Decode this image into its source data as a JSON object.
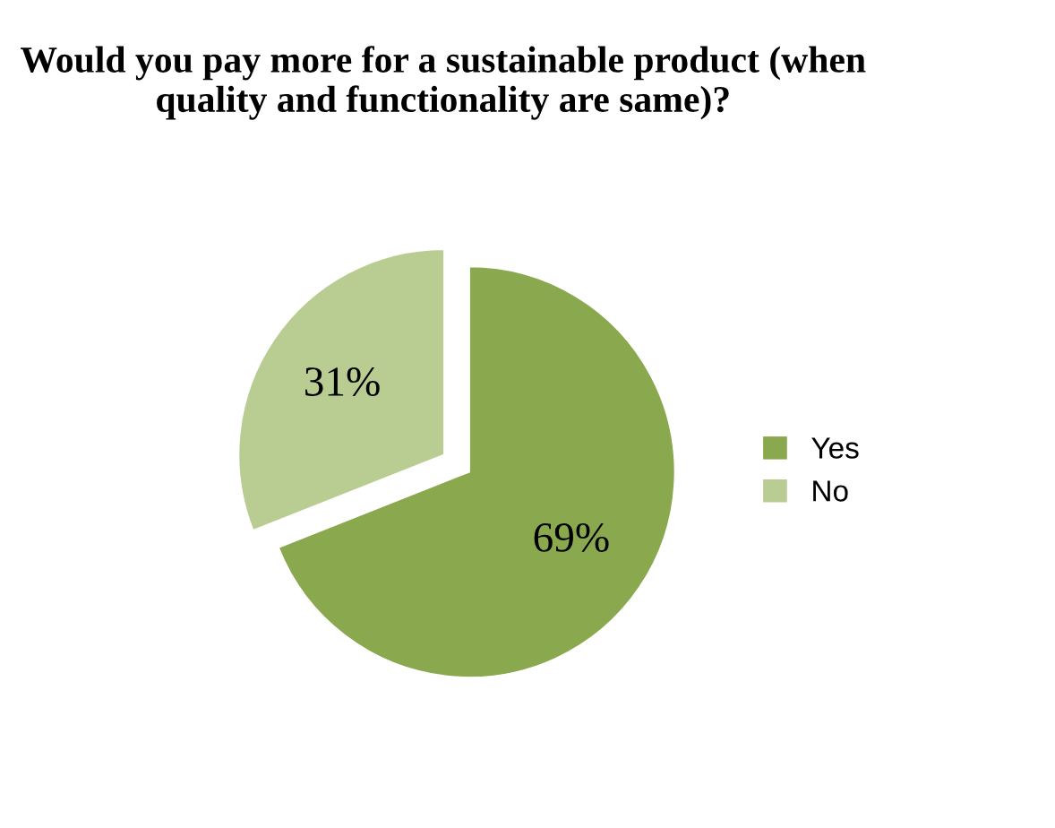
{
  "chart_data": {
    "type": "pie",
    "title": "Would you pay more for a sustainable product (when quality and functionality are same)?",
    "categories": [
      "Yes",
      "No"
    ],
    "values": [
      69,
      31
    ],
    "value_labels": [
      "69%",
      "31%"
    ],
    "colors": [
      "#8aa84e",
      "#b9cd93"
    ],
    "legend": "right"
  }
}
